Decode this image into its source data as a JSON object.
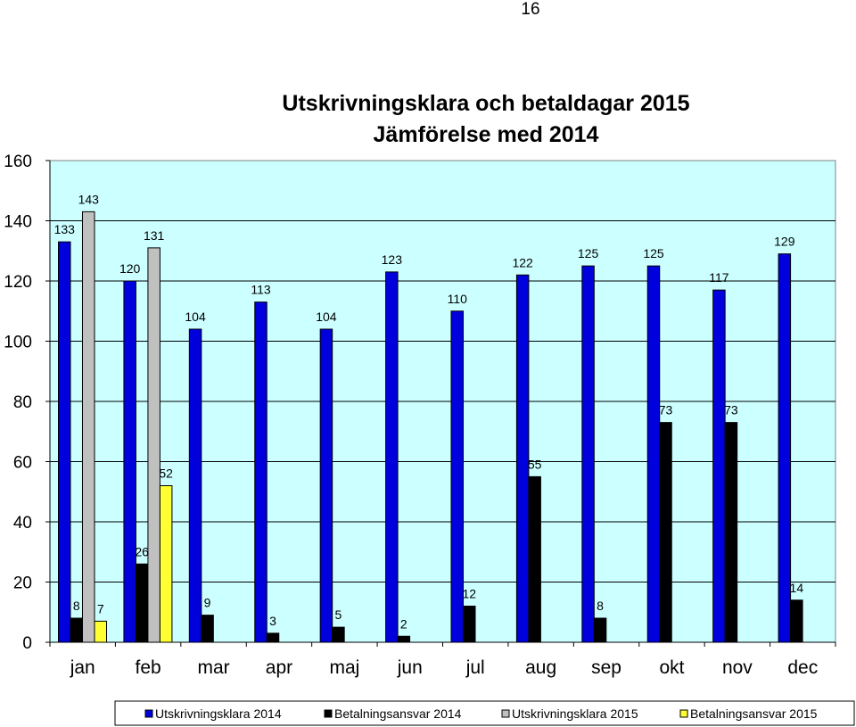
{
  "page": {
    "number": "16"
  },
  "chart_data": {
    "type": "bar",
    "title": "Utskrivningsklara och betaldagar 2015",
    "subtitle": "Jämförelse med 2014",
    "categories": [
      "jan",
      "feb",
      "mar",
      "apr",
      "maj",
      "jun",
      "jul",
      "aug",
      "sep",
      "okt",
      "nov",
      "dec"
    ],
    "series": [
      {
        "name": "Utskrivningsklara 2014",
        "color": "#0000dd",
        "values": [
          133,
          120,
          104,
          113,
          104,
          123,
          110,
          122,
          125,
          125,
          117,
          129
        ]
      },
      {
        "name": "Betalningsansvar 2014",
        "color": "#000000",
        "values": [
          8,
          26,
          9,
          3,
          5,
          2,
          12,
          55,
          8,
          73,
          73,
          14
        ]
      },
      {
        "name": "Utskrivningsklara 2015",
        "color": "#c0c0c0",
        "values": [
          143,
          131,
          null,
          null,
          null,
          null,
          null,
          null,
          null,
          null,
          null,
          null
        ]
      },
      {
        "name": "Betalningsansvar 2015",
        "color": "#ffff33",
        "values": [
          7,
          52,
          null,
          null,
          null,
          null,
          null,
          null,
          null,
          null,
          null,
          null
        ]
      }
    ],
    "ylim": [
      0,
      160
    ],
    "yticks": [
      "0",
      "20",
      "40",
      "60",
      "80",
      "100",
      "120",
      "140",
      "160"
    ],
    "grid": true,
    "plot_background": "#ccffff",
    "legend_position": "bottom"
  }
}
